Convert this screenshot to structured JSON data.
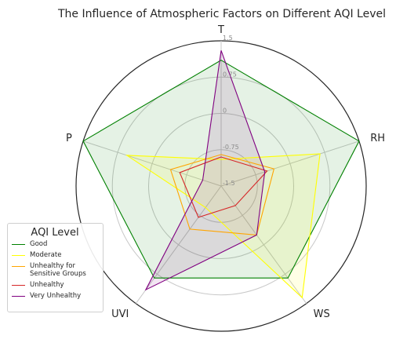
{
  "chart_data": {
    "type": "radar",
    "title": "The Influence of Atmospheric Factors on Different AQI Level",
    "axes": [
      "T",
      "RH",
      "WS",
      "UVI",
      "P"
    ],
    "rlim": [
      -1.5,
      1.5
    ],
    "tick_labels": [
      "-1.5",
      "-0.75",
      "0",
      "0.75",
      "1.5"
    ],
    "grid": true,
    "legend": {
      "title": "AQI Level",
      "placement": "lower-left"
    },
    "series": [
      {
        "name": "Good",
        "color": "#008000",
        "values": [
          1.1,
          1.5,
          0.85,
          0.85,
          1.5
        ],
        "fill": true
      },
      {
        "name": "Moderate",
        "color": "#ffff00",
        "values": [
          -0.95,
          0.65,
          1.35,
          -0.95,
          0.55
        ],
        "fill": true
      },
      {
        "name": "Unhealthy for\nSensitive Groups",
        "color": "#ffa500",
        "values": [
          -0.85,
          -0.35,
          -0.25,
          -0.4,
          -0.4
        ],
        "fill": false
      },
      {
        "name": "Unhealthy",
        "color": "#d62728",
        "values": [
          -0.9,
          -0.5,
          -1.0,
          -0.7,
          -0.6
        ],
        "fill": false
      },
      {
        "name": "Very Unhealthy",
        "color": "#800080",
        "values": [
          1.3,
          -0.55,
          -0.25,
          1.15,
          -1.1
        ],
        "fill": true
      }
    ]
  }
}
